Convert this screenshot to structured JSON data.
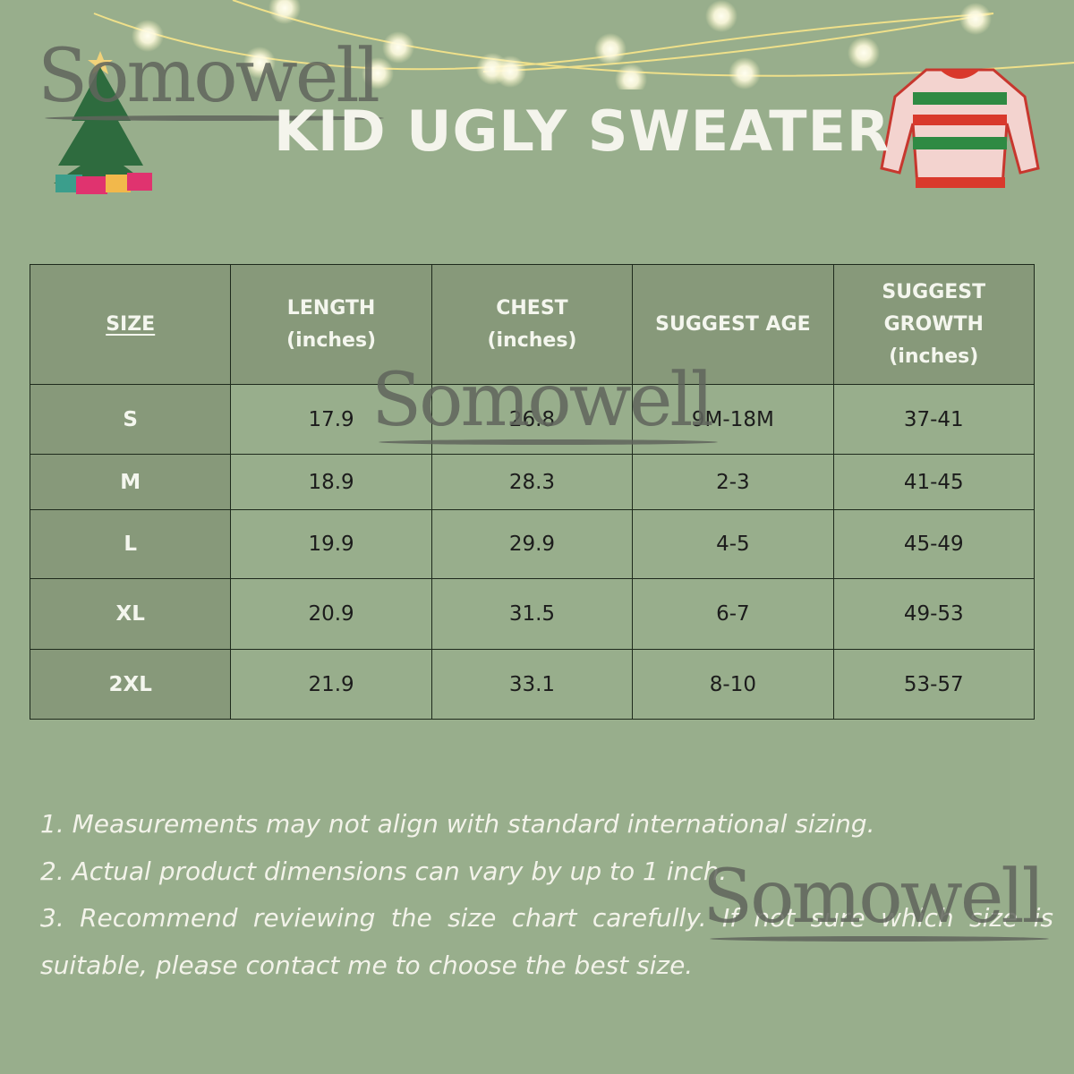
{
  "title": "KID UGLY SWEATER",
  "watermark": "Somowell",
  "table": {
    "headers": [
      "SIZE",
      "LENGTH\n(inches)",
      "CHEST\n(inches)",
      "SUGGEST AGE",
      "SUGGEST\nGROWTH\n(inches)"
    ],
    "rows": [
      [
        "S",
        "17.9",
        "26.8",
        "9M-18M",
        "37-41"
      ],
      [
        "M",
        "18.9",
        "28.3",
        "2-3",
        "41-45"
      ],
      [
        "L",
        "19.9",
        "29.9",
        "4-5",
        "45-49"
      ],
      [
        "XL",
        "20.9",
        "31.5",
        "6-7",
        "49-53"
      ],
      [
        "2XL",
        "21.9",
        "33.1",
        "8-10",
        "53-57"
      ]
    ]
  },
  "notes": [
    "1. Measurements may not align with standard international sizing.",
    "2. Actual product dimensions can vary by up to 1 inch.",
    "3. Recommend reviewing the size chart carefully. If not sure which size is suitable, please contact me to choose the best size."
  ],
  "colors": {
    "background": "#98ae8c",
    "header_cell": "#87997a",
    "border": "#1e2a1c",
    "title": "#f4f4ec"
  },
  "decorations": [
    "string-lights",
    "christmas-tree-icon",
    "sweater-icon"
  ]
}
